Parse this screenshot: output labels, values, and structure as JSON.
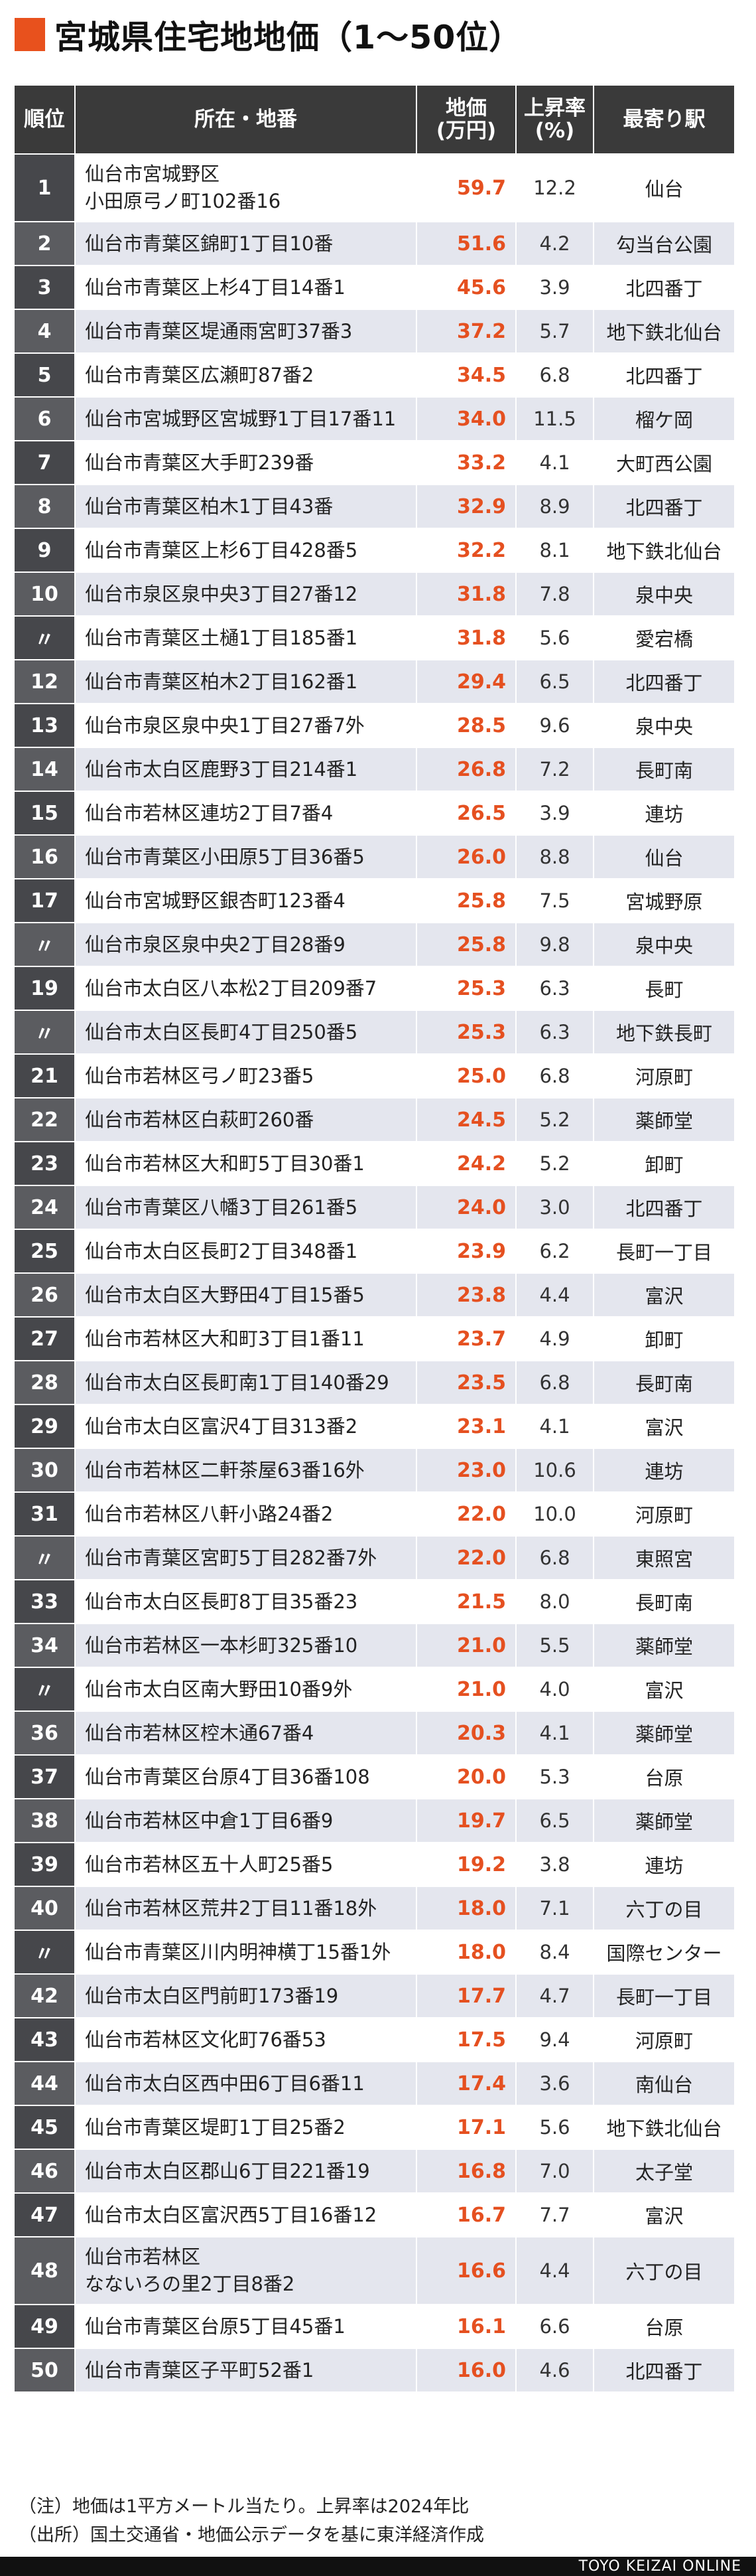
{
  "title": "宮城県住宅地地価（1～50位）",
  "colors": {
    "accent": "#e8511d",
    "header_bg": "#3a3a3a",
    "rank_bg": "#46474b",
    "row_alt_bg": "#e4e6ee",
    "price_text": "#e55020"
  },
  "headers": {
    "rank": "順位",
    "address": "所在・地番",
    "price": "地価\n(万円)",
    "rate": "上昇率\n(%)",
    "station": "最寄り駅"
  },
  "chart_data": {
    "type": "table",
    "title": "宮城県住宅地地価（1～50位）",
    "columns": [
      "順位",
      "所在・地番",
      "地価(万円)",
      "上昇率(%)",
      "最寄り駅"
    ],
    "rows": [
      {
        "rank": "1",
        "address": "仙台市宮城野区\n小田原弓ノ町102番16",
        "price": "59.7",
        "rate": "12.2",
        "station": "仙台"
      },
      {
        "rank": "2",
        "address": "仙台市青葉区錦町1丁目10番",
        "price": "51.6",
        "rate": "4.2",
        "station": "勾当台公園"
      },
      {
        "rank": "3",
        "address": "仙台市青葉区上杉4丁目14番1",
        "price": "45.6",
        "rate": "3.9",
        "station": "北四番丁"
      },
      {
        "rank": "4",
        "address": "仙台市青葉区堤通雨宮町37番3",
        "price": "37.2",
        "rate": "5.7",
        "station": "地下鉄北仙台"
      },
      {
        "rank": "5",
        "address": "仙台市青葉区広瀬町87番2",
        "price": "34.5",
        "rate": "6.8",
        "station": "北四番丁"
      },
      {
        "rank": "6",
        "address": "仙台市宮城野区宮城野1丁目17番11",
        "price": "34.0",
        "rate": "11.5",
        "station": "榴ケ岡"
      },
      {
        "rank": "7",
        "address": "仙台市青葉区大手町239番",
        "price": "33.2",
        "rate": "4.1",
        "station": "大町西公園"
      },
      {
        "rank": "8",
        "address": "仙台市青葉区柏木1丁目43番",
        "price": "32.9",
        "rate": "8.9",
        "station": "北四番丁"
      },
      {
        "rank": "9",
        "address": "仙台市青葉区上杉6丁目428番5",
        "price": "32.2",
        "rate": "8.1",
        "station": "地下鉄北仙台"
      },
      {
        "rank": "10",
        "address": "仙台市泉区泉中央3丁目27番12",
        "price": "31.8",
        "rate": "7.8",
        "station": "泉中央"
      },
      {
        "rank": "〃",
        "address": "仙台市青葉区土樋1丁目185番1",
        "price": "31.8",
        "rate": "5.6",
        "station": "愛宕橋"
      },
      {
        "rank": "12",
        "address": "仙台市青葉区柏木2丁目162番1",
        "price": "29.4",
        "rate": "6.5",
        "station": "北四番丁"
      },
      {
        "rank": "13",
        "address": "仙台市泉区泉中央1丁目27番7外",
        "price": "28.5",
        "rate": "9.6",
        "station": "泉中央"
      },
      {
        "rank": "14",
        "address": "仙台市太白区鹿野3丁目214番1",
        "price": "26.8",
        "rate": "7.2",
        "station": "長町南"
      },
      {
        "rank": "15",
        "address": "仙台市若林区連坊2丁目7番4",
        "price": "26.5",
        "rate": "3.9",
        "station": "連坊"
      },
      {
        "rank": "16",
        "address": "仙台市青葉区小田原5丁目36番5",
        "price": "26.0",
        "rate": "8.8",
        "station": "仙台"
      },
      {
        "rank": "17",
        "address": "仙台市宮城野区銀杏町123番4",
        "price": "25.8",
        "rate": "7.5",
        "station": "宮城野原"
      },
      {
        "rank": "〃",
        "address": "仙台市泉区泉中央2丁目28番9",
        "price": "25.8",
        "rate": "9.8",
        "station": "泉中央"
      },
      {
        "rank": "19",
        "address": "仙台市太白区八本松2丁目209番7",
        "price": "25.3",
        "rate": "6.3",
        "station": "長町"
      },
      {
        "rank": "〃",
        "address": "仙台市太白区長町4丁目250番5",
        "price": "25.3",
        "rate": "6.3",
        "station": "地下鉄長町"
      },
      {
        "rank": "21",
        "address": "仙台市若林区弓ノ町23番5",
        "price": "25.0",
        "rate": "6.8",
        "station": "河原町"
      },
      {
        "rank": "22",
        "address": "仙台市若林区白萩町260番",
        "price": "24.5",
        "rate": "5.2",
        "station": "薬師堂"
      },
      {
        "rank": "23",
        "address": "仙台市若林区大和町5丁目30番1",
        "price": "24.2",
        "rate": "5.2",
        "station": "卸町"
      },
      {
        "rank": "24",
        "address": "仙台市青葉区八幡3丁目261番5",
        "price": "24.0",
        "rate": "3.0",
        "station": "北四番丁"
      },
      {
        "rank": "25",
        "address": "仙台市太白区長町2丁目348番1",
        "price": "23.9",
        "rate": "6.2",
        "station": "長町一丁目"
      },
      {
        "rank": "26",
        "address": "仙台市太白区大野田4丁目15番5",
        "price": "23.8",
        "rate": "4.4",
        "station": "富沢"
      },
      {
        "rank": "27",
        "address": "仙台市若林区大和町3丁目1番11",
        "price": "23.7",
        "rate": "4.9",
        "station": "卸町"
      },
      {
        "rank": "28",
        "address": "仙台市太白区長町南1丁目140番29",
        "price": "23.5",
        "rate": "6.8",
        "station": "長町南"
      },
      {
        "rank": "29",
        "address": "仙台市太白区富沢4丁目313番2",
        "price": "23.1",
        "rate": "4.1",
        "station": "富沢"
      },
      {
        "rank": "30",
        "address": "仙台市若林区二軒茶屋63番16外",
        "price": "23.0",
        "rate": "10.6",
        "station": "連坊"
      },
      {
        "rank": "31",
        "address": "仙台市若林区八軒小路24番2",
        "price": "22.0",
        "rate": "10.0",
        "station": "河原町"
      },
      {
        "rank": "〃",
        "address": "仙台市青葉区宮町5丁目282番7外",
        "price": "22.0",
        "rate": "6.8",
        "station": "東照宮"
      },
      {
        "rank": "33",
        "address": "仙台市太白区長町8丁目35番23",
        "price": "21.5",
        "rate": "8.0",
        "station": "長町南"
      },
      {
        "rank": "34",
        "address": "仙台市若林区一本杉町325番10",
        "price": "21.0",
        "rate": "5.5",
        "station": "薬師堂"
      },
      {
        "rank": "〃",
        "address": "仙台市太白区南大野田10番9外",
        "price": "21.0",
        "rate": "4.0",
        "station": "富沢"
      },
      {
        "rank": "36",
        "address": "仙台市若林区椌木通67番4",
        "price": "20.3",
        "rate": "4.1",
        "station": "薬師堂"
      },
      {
        "rank": "37",
        "address": "仙台市青葉区台原4丁目36番108",
        "price": "20.0",
        "rate": "5.3",
        "station": "台原"
      },
      {
        "rank": "38",
        "address": "仙台市若林区中倉1丁目6番9",
        "price": "19.7",
        "rate": "6.5",
        "station": "薬師堂"
      },
      {
        "rank": "39",
        "address": "仙台市若林区五十人町25番5",
        "price": "19.2",
        "rate": "3.8",
        "station": "連坊"
      },
      {
        "rank": "40",
        "address": "仙台市若林区荒井2丁目11番18外",
        "price": "18.0",
        "rate": "7.1",
        "station": "六丁の目"
      },
      {
        "rank": "〃",
        "address": "仙台市青葉区川内明神横丁15番1外",
        "price": "18.0",
        "rate": "8.4",
        "station": "国際センター"
      },
      {
        "rank": "42",
        "address": "仙台市太白区門前町173番19",
        "price": "17.7",
        "rate": "4.7",
        "station": "長町一丁目"
      },
      {
        "rank": "43",
        "address": "仙台市若林区文化町76番53",
        "price": "17.5",
        "rate": "9.4",
        "station": "河原町"
      },
      {
        "rank": "44",
        "address": "仙台市太白区西中田6丁目6番11",
        "price": "17.4",
        "rate": "3.6",
        "station": "南仙台"
      },
      {
        "rank": "45",
        "address": "仙台市青葉区堤町1丁目25番2",
        "price": "17.1",
        "rate": "5.6",
        "station": "地下鉄北仙台"
      },
      {
        "rank": "46",
        "address": "仙台市太白区郡山6丁目221番19",
        "price": "16.8",
        "rate": "7.0",
        "station": "太子堂"
      },
      {
        "rank": "47",
        "address": "仙台市太白区富沢西5丁目16番12",
        "price": "16.7",
        "rate": "7.7",
        "station": "富沢"
      },
      {
        "rank": "48",
        "address": "仙台市若林区\nなないろの里2丁目8番2",
        "price": "16.6",
        "rate": "4.4",
        "station": "六丁の目"
      },
      {
        "rank": "49",
        "address": "仙台市青葉区台原5丁目45番1",
        "price": "16.1",
        "rate": "6.6",
        "station": "台原"
      },
      {
        "rank": "50",
        "address": "仙台市青葉区子平町52番1",
        "price": "16.0",
        "rate": "4.6",
        "station": "北四番丁"
      }
    ]
  },
  "notes": {
    "note1": "（注）地価は1平方メートル当たり。上昇率は2024年比",
    "note2": "（出所）国土交通省・地価公示データを基に東洋経済作成"
  },
  "brand": "TOYO KEIZAI ONLINE"
}
